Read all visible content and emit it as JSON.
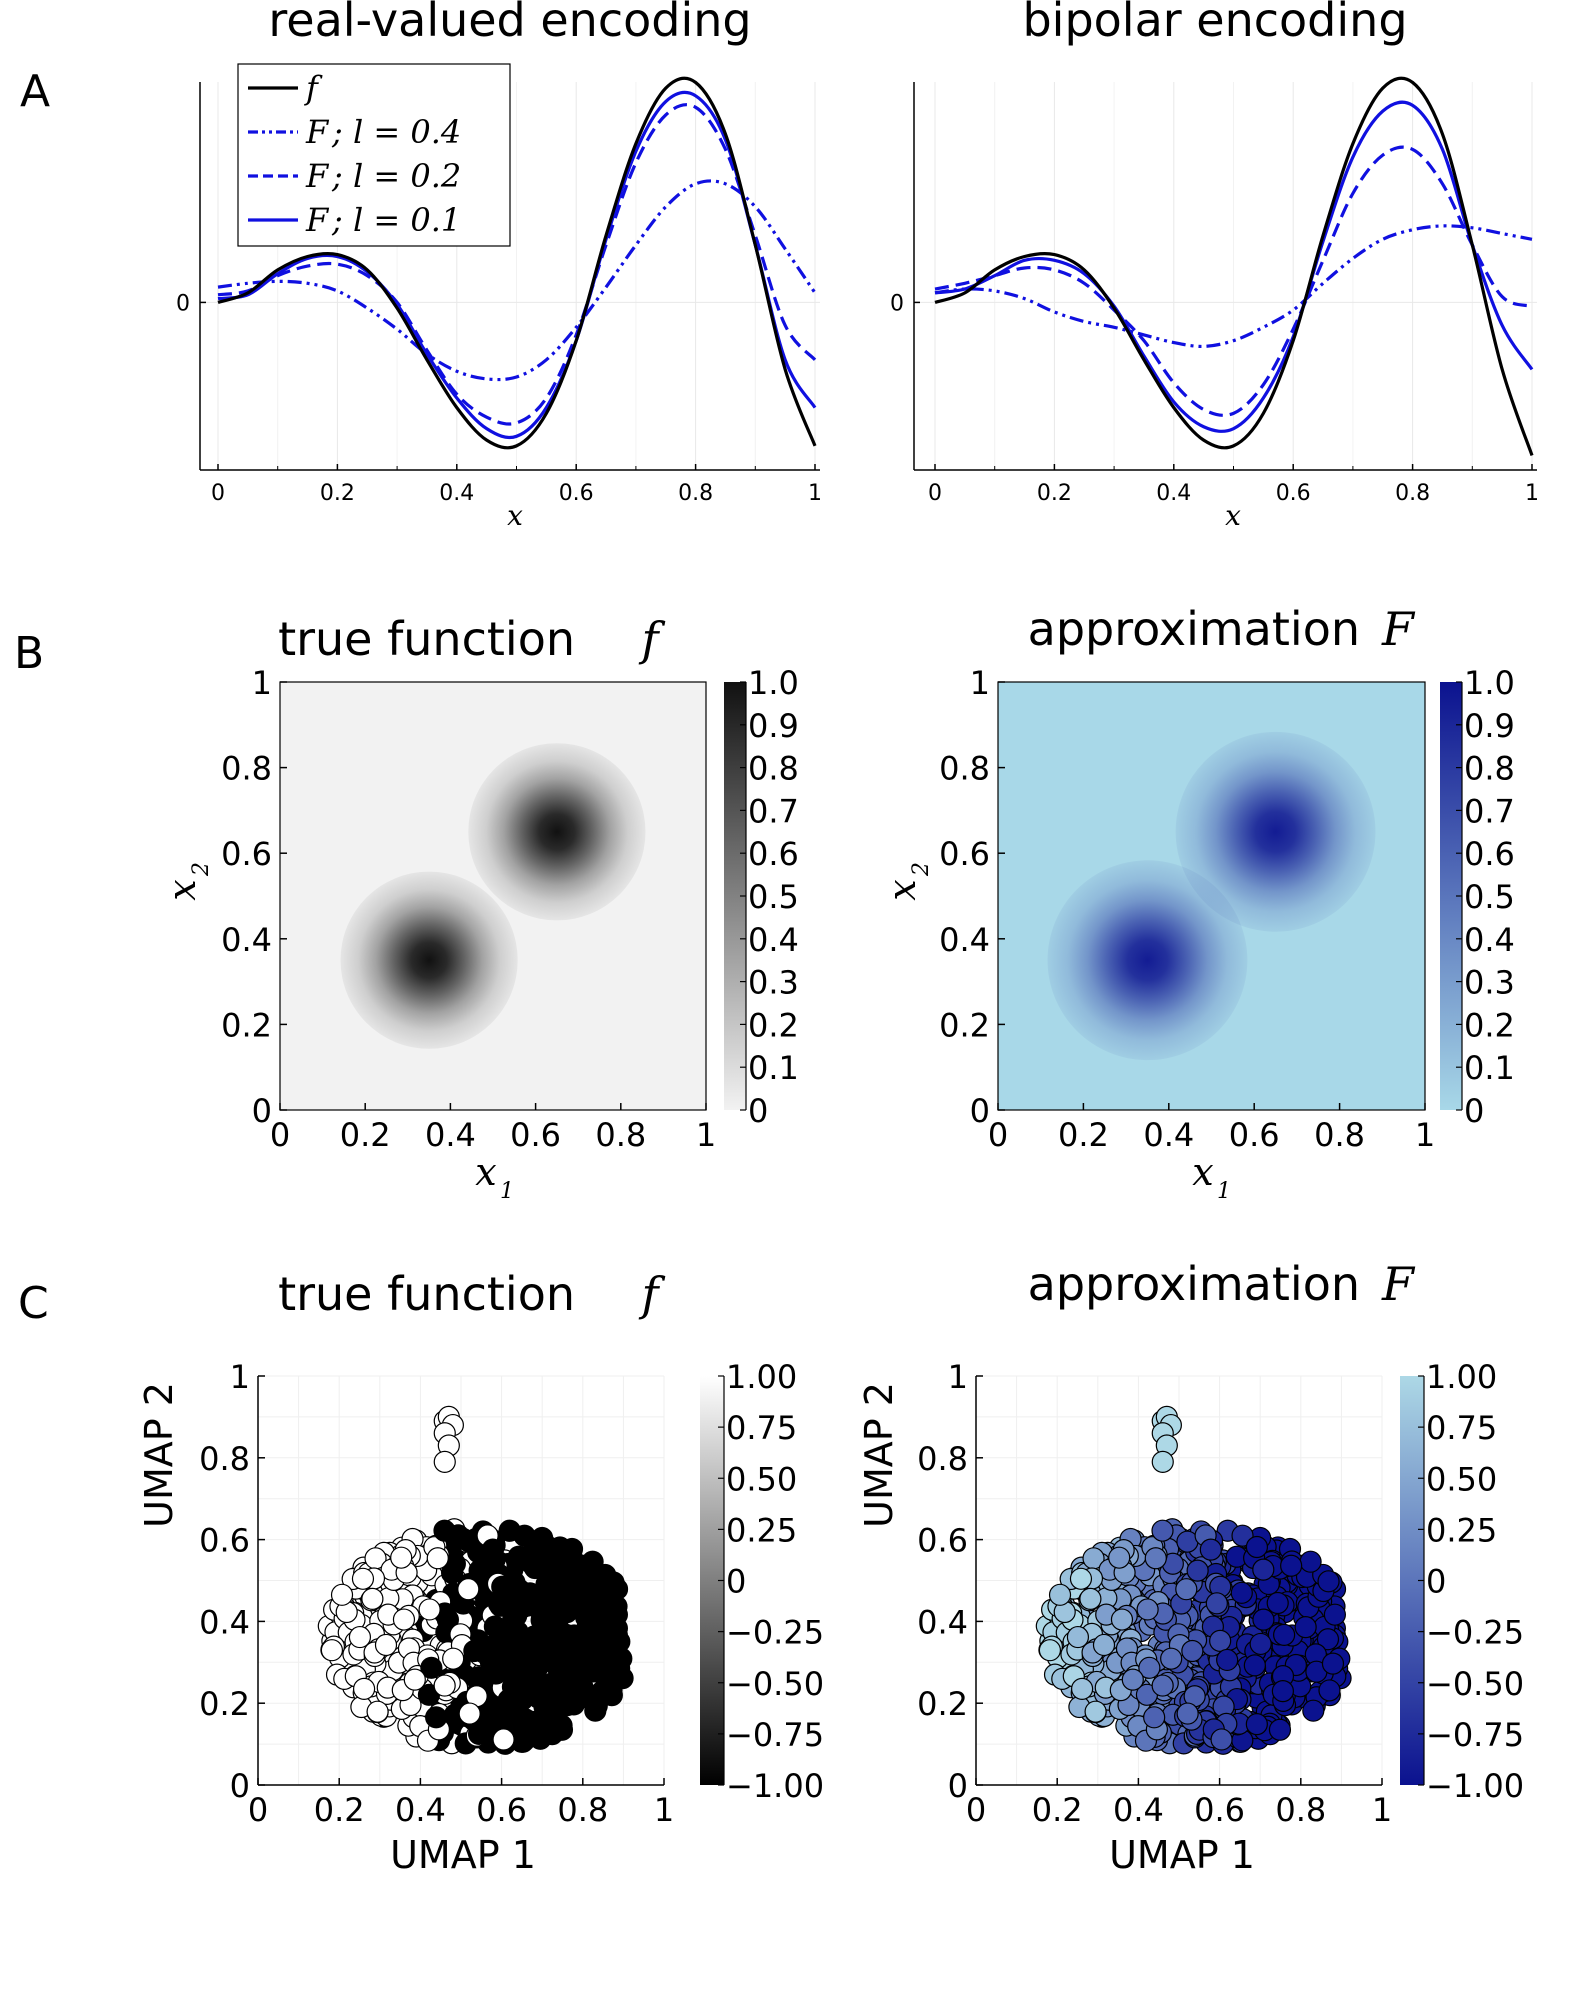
{
  "panel_labels": [
    "A",
    "B",
    "C"
  ],
  "colors": {
    "f_line": "#000000",
    "F_line": "#1010e0",
    "grid": "#e8e8e8",
    "heat_gray_low": "#f2f2f2",
    "heat_gray_high": "#111111",
    "heat_blue_low": "#a8d8e8",
    "heat_blue_high": "#0b128f",
    "blue_cbar_top": "#0b128f",
    "blue_cbar_bottom": "#add8e6"
  },
  "chart_data": [
    {
      "id": "A-left",
      "type": "line",
      "title": "real-valued encoding",
      "xlabel": "x",
      "ylabel": "",
      "xlim": [
        0,
        1
      ],
      "ylim": [
        -0.85,
        1.1
      ],
      "x_ticks": [
        "0",
        "0.2",
        "0.4",
        "0.6",
        "0.8",
        "1"
      ],
      "y_ticks": [
        "0"
      ],
      "grid": true,
      "legend_position": "top-left",
      "legend": [
        {
          "sym": "f",
          "text": ""
        },
        {
          "sym": "F",
          "text": "; l = 0.4"
        },
        {
          "sym": "F",
          "text": "; l = 0.2"
        },
        {
          "sym": "F",
          "text": "; l = 0.1"
        }
      ],
      "x": [
        0,
        0.05,
        0.1,
        0.15,
        0.2,
        0.25,
        0.3,
        0.35,
        0.4,
        0.45,
        0.5,
        0.55,
        0.6,
        0.65,
        0.7,
        0.75,
        0.8,
        0.85,
        0.9,
        0.95,
        1.0
      ],
      "series": [
        {
          "name": "f",
          "style": "solid",
          "color": "#000000",
          "values": [
            0,
            0.05,
            0.17,
            0.24,
            0.25,
            0.17,
            -0.03,
            -0.3,
            -0.55,
            -0.72,
            -0.75,
            -0.58,
            -0.2,
            0.35,
            0.83,
            1.12,
            1.15,
            0.88,
            0.3,
            -0.35,
            -0.75
          ]
        },
        {
          "name": "F ; l = 0.4",
          "style": "dashdotdot",
          "color": "#1010e0",
          "values": [
            0.08,
            0.1,
            0.11,
            0.1,
            0.06,
            -0.03,
            -0.14,
            -0.27,
            -0.36,
            -0.4,
            -0.39,
            -0.3,
            -0.13,
            0.08,
            0.3,
            0.5,
            0.62,
            0.62,
            0.5,
            0.28,
            0.05
          ]
        },
        {
          "name": "F ; l = 0.2",
          "style": "dashed",
          "color": "#1010e0",
          "values": [
            0.04,
            0.06,
            0.14,
            0.19,
            0.2,
            0.14,
            0.0,
            -0.25,
            -0.48,
            -0.6,
            -0.63,
            -0.5,
            -0.17,
            0.3,
            0.73,
            0.98,
            1.02,
            0.8,
            0.35,
            -0.12,
            -0.3
          ]
        },
        {
          "name": "F ; l = 0.1",
          "style": "solid",
          "color": "#1010e0",
          "values": [
            0.02,
            0.04,
            0.15,
            0.23,
            0.24,
            0.16,
            -0.01,
            -0.27,
            -0.5,
            -0.66,
            -0.7,
            -0.55,
            -0.2,
            0.33,
            0.79,
            1.05,
            1.08,
            0.85,
            0.3,
            -0.3,
            -0.55
          ]
        }
      ]
    },
    {
      "id": "A-right",
      "type": "line",
      "title": "bipolar encoding",
      "xlabel": "x",
      "ylabel": "",
      "xlim": [
        0,
        1
      ],
      "ylim": [
        -0.85,
        1.1
      ],
      "x_ticks": [
        "0",
        "0.2",
        "0.4",
        "0.6",
        "0.8",
        "1"
      ],
      "y_ticks": [
        "0"
      ],
      "grid": true,
      "x": [
        0,
        0.05,
        0.1,
        0.15,
        0.2,
        0.25,
        0.3,
        0.35,
        0.4,
        0.45,
        0.5,
        0.55,
        0.6,
        0.65,
        0.7,
        0.75,
        0.8,
        0.85,
        0.9,
        0.95,
        1.0
      ],
      "series": [
        {
          "name": "f",
          "style": "solid",
          "color": "#000000",
          "values": [
            0,
            0.05,
            0.17,
            0.24,
            0.25,
            0.17,
            -0.03,
            -0.3,
            -0.55,
            -0.72,
            -0.75,
            -0.58,
            -0.2,
            0.35,
            0.83,
            1.12,
            1.15,
            0.88,
            0.3,
            -0.35,
            -0.8
          ]
        },
        {
          "name": "F ; l = 0.4",
          "style": "dashdotdot",
          "color": "#1010e0",
          "values": [
            0.05,
            0.07,
            0.06,
            0.02,
            -0.05,
            -0.1,
            -0.13,
            -0.17,
            -0.21,
            -0.23,
            -0.2,
            -0.13,
            -0.04,
            0.1,
            0.23,
            0.33,
            0.38,
            0.4,
            0.39,
            0.36,
            0.33
          ]
        },
        {
          "name": "F ; l = 0.2",
          "style": "dashed",
          "color": "#1010e0",
          "values": [
            0.07,
            0.1,
            0.14,
            0.18,
            0.17,
            0.1,
            -0.04,
            -0.2,
            -0.42,
            -0.56,
            -0.58,
            -0.43,
            -0.14,
            0.22,
            0.57,
            0.77,
            0.8,
            0.62,
            0.3,
            0.03,
            -0.02
          ]
        },
        {
          "name": "F ; l = 0.1",
          "style": "solid",
          "color": "#1010e0",
          "values": [
            0.05,
            0.07,
            0.14,
            0.22,
            0.22,
            0.15,
            -0.02,
            -0.28,
            -0.52,
            -0.65,
            -0.66,
            -0.5,
            -0.18,
            0.32,
            0.76,
            1.0,
            1.03,
            0.8,
            0.3,
            -0.12,
            -0.35
          ]
        }
      ]
    },
    {
      "id": "B-left",
      "type": "heatmap",
      "title": "true function",
      "title_symbol": "f",
      "xlabel": "x",
      "xlabel_sub": "1",
      "ylabel": "x",
      "ylabel_sub": "2",
      "xlim": [
        0,
        1
      ],
      "ylim": [
        0,
        1
      ],
      "x_ticks": [
        "0",
        "0.2",
        "0.4",
        "0.6",
        "0.8",
        "1"
      ],
      "y_ticks": [
        "0",
        "0.2",
        "0.4",
        "0.6",
        "0.8",
        "1"
      ],
      "colorbar_ticks": [
        "1.0",
        "0.9",
        "0.8",
        "0.7",
        "0.6",
        "0.5",
        "0.4",
        "0.3",
        "0.2",
        "0.1",
        "0"
      ],
      "colorbar_range": [
        0,
        1
      ],
      "peaks": [
        {
          "x": 0.35,
          "y": 0.35,
          "value": 1.0
        },
        {
          "x": 0.65,
          "y": 0.65,
          "value": 1.0
        }
      ],
      "peak_width": 0.08,
      "colormap": "gray-reversed"
    },
    {
      "id": "B-right",
      "type": "heatmap",
      "title": "approximation",
      "title_symbol": "F",
      "xlabel": "x",
      "xlabel_sub": "1",
      "ylabel": "x",
      "ylabel_sub": "2",
      "xlim": [
        0,
        1
      ],
      "ylim": [
        0,
        1
      ],
      "x_ticks": [
        "0",
        "0.2",
        "0.4",
        "0.6",
        "0.8",
        "1"
      ],
      "y_ticks": [
        "0",
        "0.2",
        "0.4",
        "0.6",
        "0.8",
        "1"
      ],
      "colorbar_ticks": [
        "1.0",
        "0.9",
        "0.8",
        "0.7",
        "0.6",
        "0.5",
        "0.4",
        "0.3",
        "0.2",
        "0.1",
        "0"
      ],
      "colorbar_range": [
        0,
        1
      ],
      "peaks": [
        {
          "x": 0.35,
          "y": 0.35,
          "value": 0.95
        },
        {
          "x": 0.65,
          "y": 0.65,
          "value": 0.95
        }
      ],
      "peak_width": 0.09,
      "colormap": "blues"
    },
    {
      "id": "C-left",
      "type": "scatter",
      "title": "true function",
      "title_symbol": "f",
      "xlabel": "UMAP 1",
      "ylabel": "UMAP 2",
      "xlim": [
        0,
        1
      ],
      "ylim": [
        0,
        1
      ],
      "x_ticks": [
        "0",
        "0.2",
        "0.4",
        "0.6",
        "0.8",
        "1"
      ],
      "y_ticks": [
        "0",
        "0.2",
        "0.4",
        "0.6",
        "0.8",
        "1"
      ],
      "colorbar_ticks": [
        "1.00",
        "0.75",
        "0.50",
        "0.25",
        "0",
        "−0.25",
        "−0.50",
        "−0.75",
        "−1.00"
      ],
      "colorbar_range": [
        -1,
        1
      ],
      "colormap": "gray",
      "cluster": {
        "x_range": [
          0.1,
          0.9
        ],
        "y_range": [
          0.1,
          0.69
        ],
        "center": [
          0.55,
          0.36
        ],
        "n_points": 700,
        "split_x": 0.5
      },
      "tail": [
        {
          "x": 0.46,
          "y": 0.89
        },
        {
          "x": 0.47,
          "y": 0.9
        },
        {
          "x": 0.48,
          "y": 0.88
        },
        {
          "x": 0.46,
          "y": 0.86
        },
        {
          "x": 0.47,
          "y": 0.83
        },
        {
          "x": 0.46,
          "y": 0.79
        }
      ]
    },
    {
      "id": "C-right",
      "type": "scatter",
      "title": "approximation",
      "title_symbol": "F",
      "xlabel": "UMAP 1",
      "ylabel": "UMAP 2",
      "xlim": [
        0,
        1
      ],
      "ylim": [
        0,
        1
      ],
      "x_ticks": [
        "0",
        "0.2",
        "0.4",
        "0.6",
        "0.8",
        "1"
      ],
      "y_ticks": [
        "0",
        "0.2",
        "0.4",
        "0.6",
        "0.8",
        "1"
      ],
      "colorbar_ticks": [
        "1.00",
        "0.75",
        "0.50",
        "0.25",
        "0",
        "−0.25",
        "−0.50",
        "−0.75",
        "−1.00"
      ],
      "colorbar_range": [
        -1,
        1
      ],
      "colormap": "blues",
      "cluster": {
        "x_range": [
          0.1,
          0.9
        ],
        "y_range": [
          0.1,
          0.69
        ],
        "center": [
          0.55,
          0.36
        ],
        "n_points": 700,
        "split_x": 0.5
      },
      "tail": [
        {
          "x": 0.46,
          "y": 0.89
        },
        {
          "x": 0.47,
          "y": 0.9
        },
        {
          "x": 0.48,
          "y": 0.88
        },
        {
          "x": 0.46,
          "y": 0.86
        },
        {
          "x": 0.47,
          "y": 0.83
        },
        {
          "x": 0.46,
          "y": 0.79
        }
      ]
    }
  ]
}
